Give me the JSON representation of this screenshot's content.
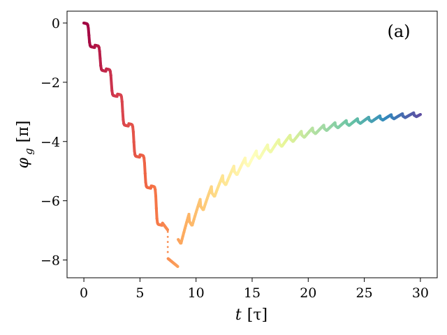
{
  "chart_data": {
    "type": "scatter",
    "panel_label": "(a)",
    "xlabel": {
      "symbol": "t",
      "unit": "[τ]"
    },
    "ylabel": {
      "symbol": "φ",
      "subscript": "g",
      "unit": "[π]"
    },
    "xlim": [
      -1.5,
      31.5
    ],
    "ylim": [
      -8.6,
      0.4
    ],
    "xticks": [
      0,
      5,
      10,
      15,
      20,
      25,
      30
    ],
    "yticks": [
      0,
      -2,
      -4,
      -6,
      -8
    ],
    "xtick_labels": [
      "0",
      "5",
      "10",
      "15",
      "20",
      "25",
      "30"
    ],
    "ytick_labels": [
      "0",
      "−2",
      "−4",
      "−6",
      "−8"
    ],
    "colormap": "Spectral",
    "colormap_stops": [
      "#9e0142",
      "#d53e4f",
      "#f46d43",
      "#fdae61",
      "#fee08b",
      "#ffffbf",
      "#e6f598",
      "#abdda4",
      "#66c2a5",
      "#3288bd",
      "#5e4fa2"
    ],
    "grid": false,
    "segments": [
      {
        "t_start": 0,
        "t_end": 7.5,
        "phi_start": 0.0,
        "phi_end": -7.0,
        "oscillation_period": 1.0
      },
      {
        "t_start": 7.5,
        "t_end": 8.4,
        "phi_start": -7.95,
        "phi_end": -8.2,
        "oscillation_period": 1.0
      },
      {
        "t_start": 8.4,
        "t_end": 30,
        "phi_start": -7.35,
        "phi_end": -2.95,
        "oscillation_period": 1.0
      }
    ],
    "key_points": [
      {
        "t": 0,
        "phi": 0.0
      },
      {
        "t": 1.0,
        "phi": -0.75
      },
      {
        "t": 2.0,
        "phi": -1.55
      },
      {
        "t": 3.0,
        "phi": -2.4
      },
      {
        "t": 4.0,
        "phi": -3.4
      },
      {
        "t": 5.0,
        "phi": -4.45
      },
      {
        "t": 6.0,
        "phi": -5.5
      },
      {
        "t": 7.0,
        "phi": -6.75
      },
      {
        "t": 7.5,
        "phi": -7.0
      },
      {
        "t": 8.4,
        "phi": -8.2
      },
      {
        "t": 9.5,
        "phi": -6.85
      },
      {
        "t": 12.0,
        "phi": -5.5
      },
      {
        "t": 15.0,
        "phi": -4.55
      },
      {
        "t": 20.0,
        "phi": -3.65
      },
      {
        "t": 25.0,
        "phi": -3.15
      },
      {
        "t": 30.0,
        "phi": -2.95
      }
    ]
  }
}
